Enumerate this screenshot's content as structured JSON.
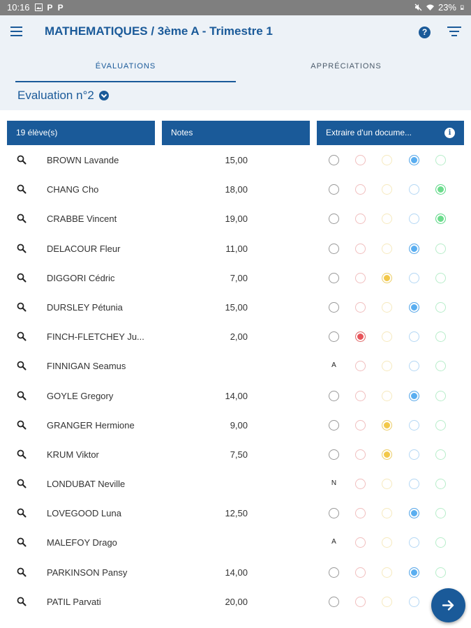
{
  "status_bar": {
    "time": "10:16",
    "battery": "23%",
    "left_icons": [
      "image-icon",
      "p-app-icon",
      "p-app-icon"
    ],
    "right_icons": [
      "mute-icon",
      "wifi-icon",
      "battery-icon"
    ]
  },
  "header": {
    "title": "MATHEMATIQUES / 3ème A - Trimestre 1",
    "tabs": [
      {
        "label": "ÉVALUATIONS",
        "active": true
      },
      {
        "label": "APPRÉCIATIONS",
        "active": false
      }
    ],
    "evaluation_selector": "Evaluation n°2"
  },
  "columns": {
    "students": "19 élève(s)",
    "notes": "Notes",
    "extract": "Extraire d'un docume..."
  },
  "colors": {
    "primary": "#1a5a99",
    "header_bg": "#edf2f7",
    "level_colors": [
      "#999999",
      "#e07070",
      "#ecd070",
      "#5aa8e8",
      "#60d88a"
    ],
    "level_fills": [
      "#ffffff",
      "#e8545a",
      "#f2c84a",
      "#5aaef0",
      "#6cdc8c"
    ]
  },
  "students": [
    {
      "name": "BROWN Lavande",
      "grade": "15,00",
      "selected": 3,
      "mark": ""
    },
    {
      "name": "CHANG Cho",
      "grade": "18,00",
      "selected": 4,
      "mark": ""
    },
    {
      "name": "CRABBE Vincent",
      "grade": "19,00",
      "selected": 4,
      "mark": ""
    },
    {
      "name": "DELACOUR Fleur",
      "grade": "11,00",
      "selected": 3,
      "mark": ""
    },
    {
      "name": "DIGGORI Cédric",
      "grade": "7,00",
      "selected": 2,
      "mark": ""
    },
    {
      "name": "DURSLEY Pétunia",
      "grade": "15,00",
      "selected": 3,
      "mark": ""
    },
    {
      "name": "FINCH-FLETCHEY Ju...",
      "grade": "2,00",
      "selected": 1,
      "mark": ""
    },
    {
      "name": "FINNIGAN Seamus",
      "grade": "",
      "selected": -1,
      "mark": "A"
    },
    {
      "name": "GOYLE Gregory",
      "grade": "14,00",
      "selected": 3,
      "mark": ""
    },
    {
      "name": "GRANGER Hermione",
      "grade": "9,00",
      "selected": 2,
      "mark": ""
    },
    {
      "name": "KRUM Viktor",
      "grade": "7,50",
      "selected": 2,
      "mark": ""
    },
    {
      "name": "LONDUBAT Neville",
      "grade": "",
      "selected": -1,
      "mark": "N"
    },
    {
      "name": "LOVEGOOD Luna",
      "grade": "12,50",
      "selected": 3,
      "mark": ""
    },
    {
      "name": "MALEFOY Drago",
      "grade": "",
      "selected": -1,
      "mark": "A"
    },
    {
      "name": "PARKINSON Pansy",
      "grade": "14,00",
      "selected": 3,
      "mark": ""
    },
    {
      "name": "PATIL Parvati",
      "grade": "20,00",
      "selected": -1,
      "mark": ""
    }
  ]
}
